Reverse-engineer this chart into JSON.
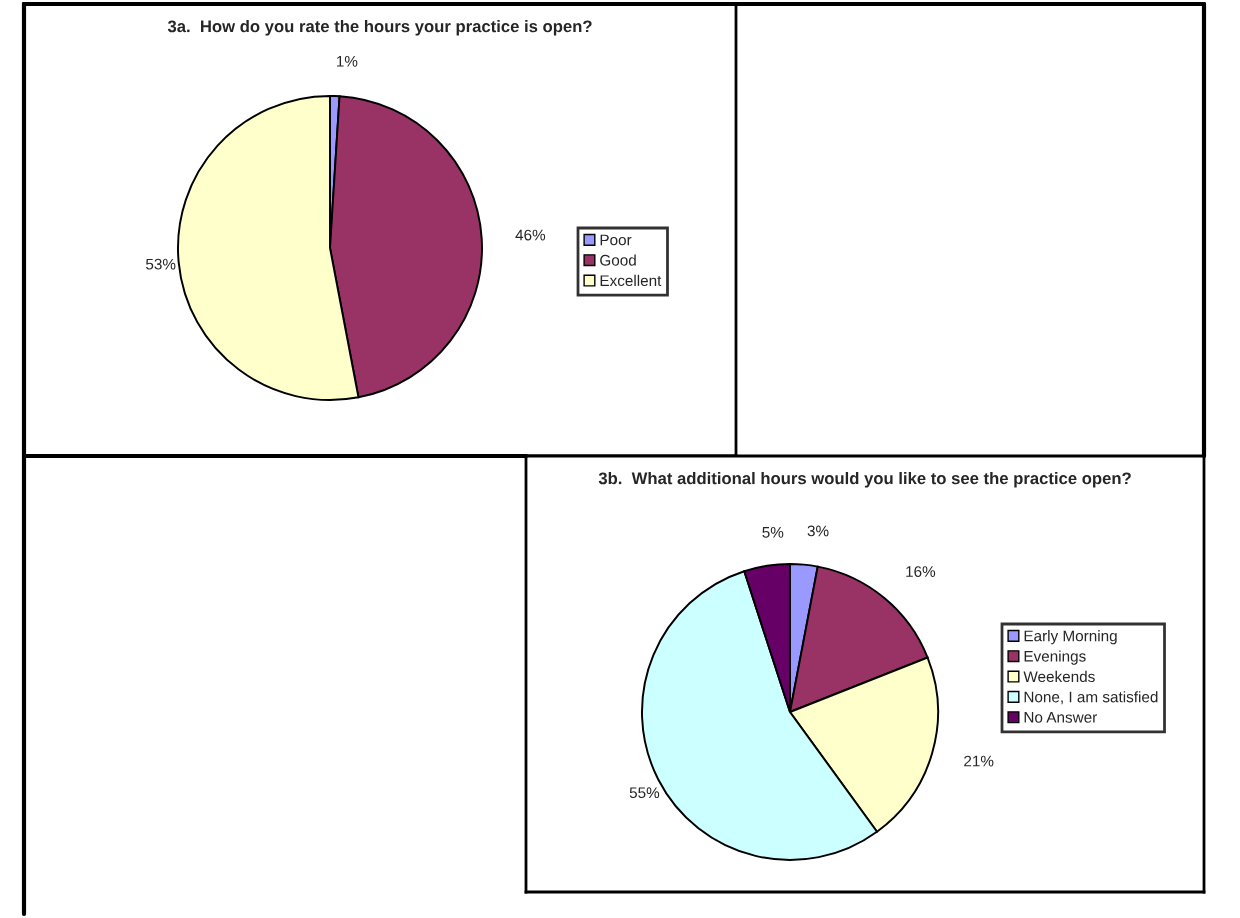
{
  "chart_data": [
    {
      "type": "pie",
      "title": "3a.  How do you rate the hours your practice is open?",
      "categories": [
        "Poor",
        "Good",
        "Excellent"
      ],
      "values": [
        1,
        46,
        53
      ],
      "value_labels": [
        "1%",
        "46%",
        "53%"
      ],
      "colors": [
        "#9999ff",
        "#993366",
        "#ffffcc"
      ],
      "legend": "right"
    },
    {
      "type": "pie",
      "title": "3b.  What additional hours would you like to see the practice open?",
      "categories": [
        "Early Morning",
        "Evenings",
        "Weekends",
        "None, I am satisfied",
        "No Answer"
      ],
      "values": [
        3,
        16,
        21,
        55,
        5
      ],
      "value_labels": [
        "3%",
        "16%",
        "21%",
        "55%",
        "5%"
      ],
      "colors": [
        "#9999ff",
        "#993366",
        "#ffffcc",
        "#ccffff",
        "#660066"
      ],
      "legend": "right"
    }
  ]
}
